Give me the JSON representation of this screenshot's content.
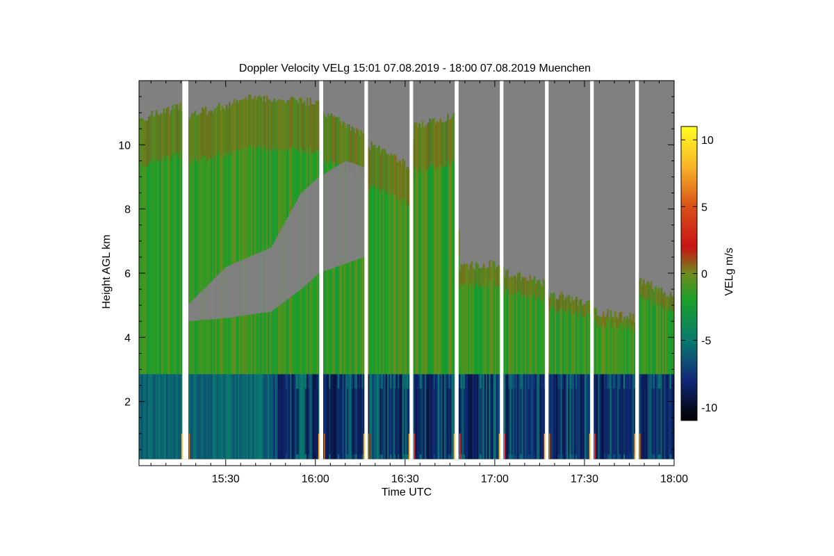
{
  "chart_data": {
    "type": "heatmap",
    "title": "Doppler Velocity VELg   15:01 07.08.2019 - 18:00 07.08.2019 Muenchen",
    "xlabel": "Time UTC",
    "ylabel": "Height AGL km",
    "x_ticks": [
      "15:30",
      "16:00",
      "16:30",
      "17:00",
      "17:30",
      "18:00"
    ],
    "x_tick_minutes": [
      30,
      60,
      90,
      120,
      150,
      180
    ],
    "xlim_minutes": [
      1,
      180
    ],
    "y_ticks": [
      "2",
      "4",
      "6",
      "8",
      "10"
    ],
    "y_tick_values": [
      2,
      4,
      6,
      8,
      10
    ],
    "ylim_km": [
      0,
      12
    ],
    "colorbar": {
      "label": "VELg m/s",
      "ticks": [
        "10",
        "5",
        "0",
        "-5",
        "-10"
      ],
      "tick_values": [
        10,
        5,
        0,
        -5,
        -10
      ],
      "range": [
        -11,
        11
      ],
      "stops": [
        {
          "v": -11,
          "c": "#000000"
        },
        {
          "v": -8,
          "c": "#102878"
        },
        {
          "v": -5,
          "c": "#0a7a6e"
        },
        {
          "v": -2,
          "c": "#1aa028"
        },
        {
          "v": 0,
          "c": "#6e8a1c"
        },
        {
          "v": 2,
          "c": "#c81414"
        },
        {
          "v": 5,
          "c": "#d85018"
        },
        {
          "v": 8,
          "c": "#f8b428"
        },
        {
          "v": 11,
          "c": "#ffff20"
        }
      ]
    },
    "no_signal_color": "#808080",
    "data_gaps_minutes": [
      [
        15.5,
        17.5
      ],
      [
        61.3,
        62.6
      ],
      [
        76.4,
        77.6
      ],
      [
        91.5,
        92.7
      ],
      [
        106.6,
        107.9
      ],
      [
        121.7,
        122.9
      ],
      [
        136.8,
        138.0
      ],
      [
        151.9,
        153.1
      ],
      [
        167.0,
        168.2
      ]
    ],
    "cloud_top_km": [
      {
        "t": 1,
        "h": 10.8
      },
      {
        "t": 15,
        "h": 11.2
      },
      {
        "t": 18,
        "h": 10.9
      },
      {
        "t": 40,
        "h": 11.5
      },
      {
        "t": 61,
        "h": 11.3
      },
      {
        "t": 63,
        "h": 11.0
      },
      {
        "t": 77,
        "h": 10.3
      },
      {
        "t": 78,
        "h": 10.0
      },
      {
        "t": 92,
        "h": 9.3
      },
      {
        "t": 93,
        "h": 10.6
      },
      {
        "t": 107,
        "h": 10.9
      },
      {
        "t": 108,
        "h": 6.2
      },
      {
        "t": 122,
        "h": 6.3
      },
      {
        "t": 123,
        "h": 6.0
      },
      {
        "t": 137,
        "h": 5.7
      },
      {
        "t": 138,
        "h": 5.4
      },
      {
        "t": 152,
        "h": 5.0
      },
      {
        "t": 153,
        "h": 4.8
      },
      {
        "t": 167,
        "h": 4.6
      },
      {
        "t": 168,
        "h": 5.8
      },
      {
        "t": 180,
        "h": 5.3
      }
    ],
    "clear_region_km": [
      {
        "t": 17,
        "bottom": 4.5,
        "top": 5.0
      },
      {
        "t": 30,
        "bottom": 4.6,
        "top": 6.2
      },
      {
        "t": 45,
        "bottom": 4.8,
        "top": 6.8
      },
      {
        "t": 55,
        "bottom": 5.5,
        "top": 8.5
      },
      {
        "t": 61,
        "bottom": 6.0,
        "top": 9.0
      },
      {
        "t": 70,
        "bottom": 6.3,
        "top": 9.5
      },
      {
        "t": 76,
        "bottom": 6.5,
        "top": 9.3
      }
    ],
    "boundary_layer_top_km": 2.85,
    "boundary_layer_mean_velocity_ms": -5,
    "cloud_mean_velocity_ms": -1.5
  }
}
